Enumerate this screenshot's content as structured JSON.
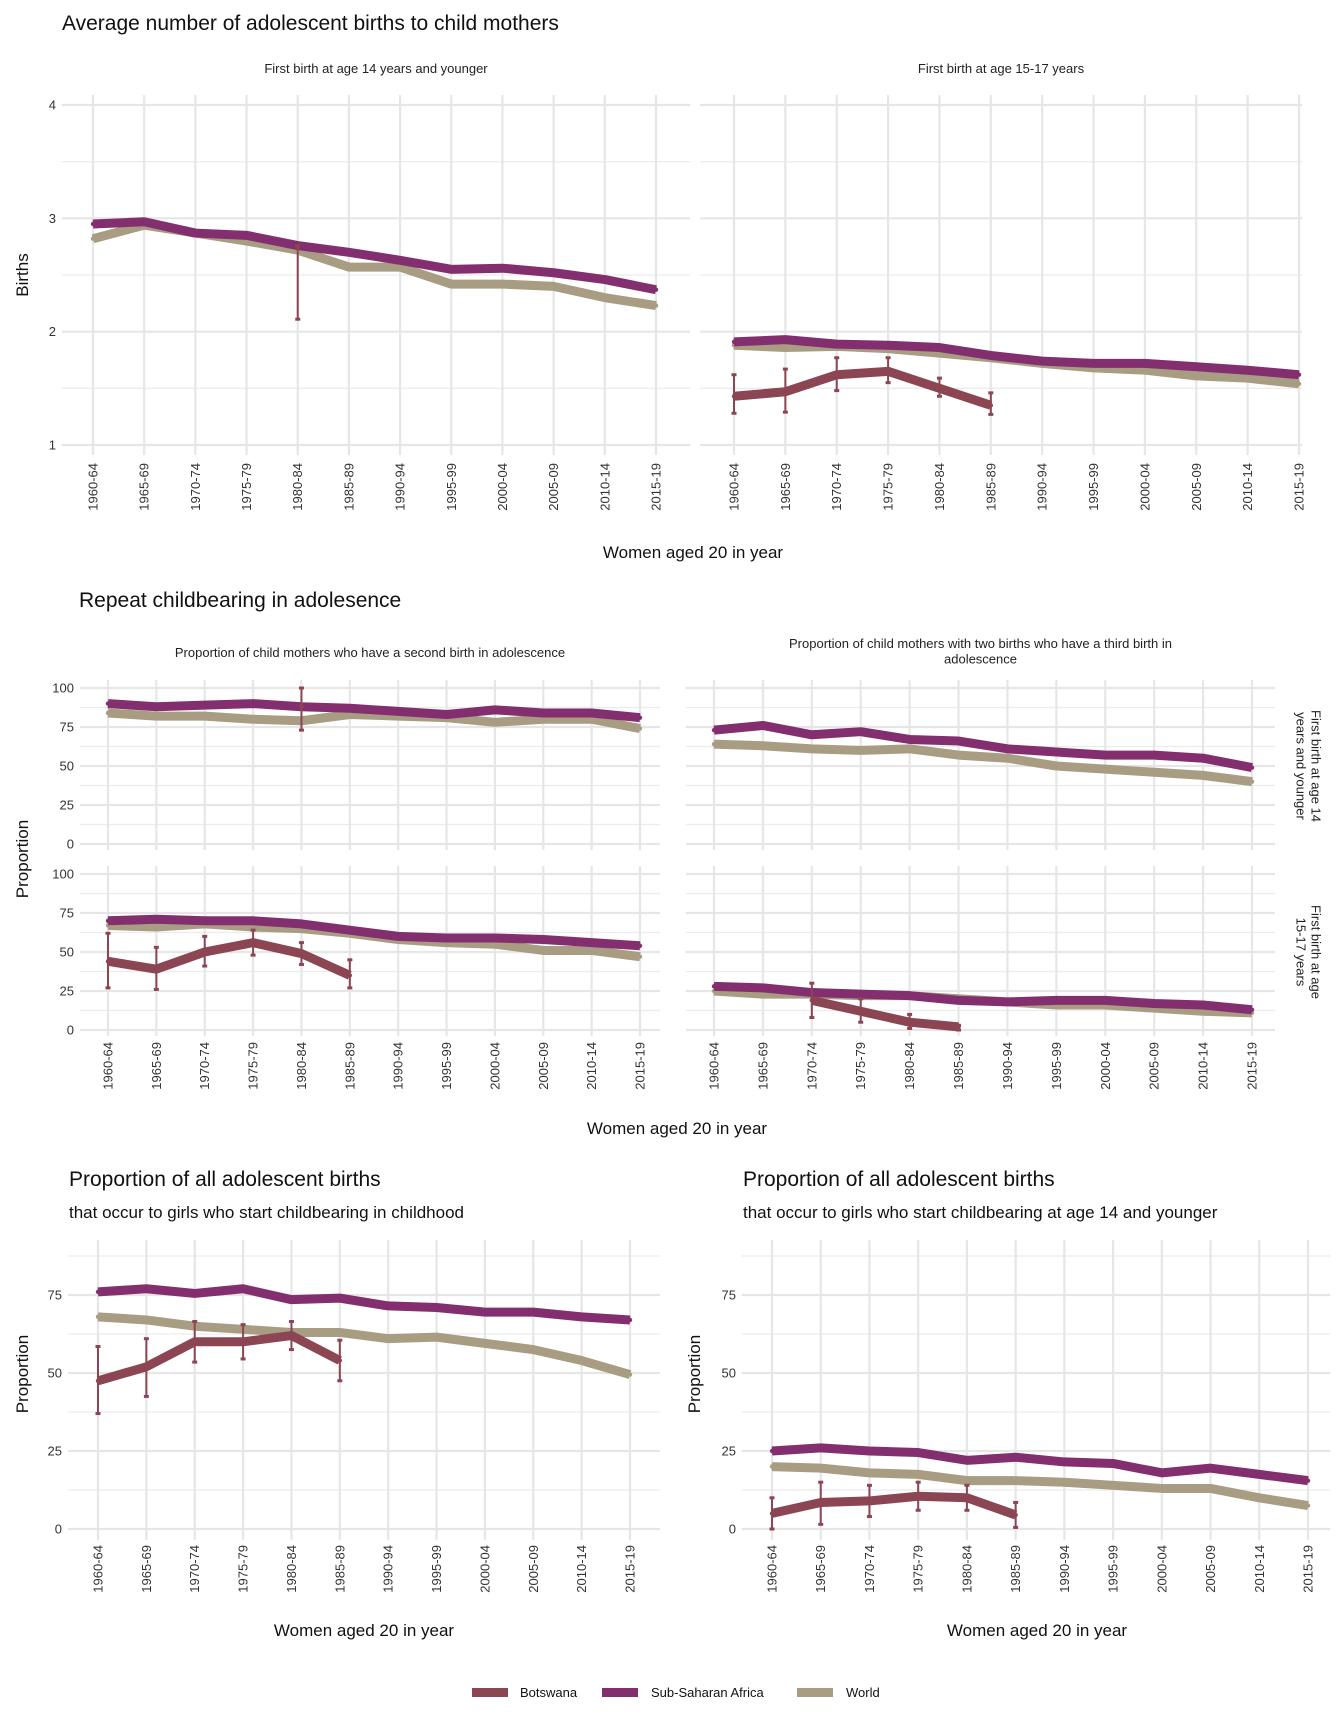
{
  "colors": {
    "Botswana": "#8b4553",
    "Sub-Saharan Africa": "#832f6f",
    "World": "#a89c82",
    "grid": "#e6e6e6"
  },
  "x_categories": [
    "1960-64",
    "1965-69",
    "1970-74",
    "1975-79",
    "1980-84",
    "1985-89",
    "1990-94",
    "1995-99",
    "2000-04",
    "2005-09",
    "2010-14",
    "2015-19"
  ],
  "legend": [
    {
      "label": "Botswana",
      "key": "Botswana"
    },
    {
      "label": "Sub-Saharan Africa",
      "key": "Sub-Saharan Africa"
    },
    {
      "label": "World",
      "key": "World"
    }
  ],
  "sections": {
    "births": {
      "title": "Average number of adolescent births to child mothers",
      "xlabel": "Women aged 20 in year",
      "ylabel": "Births"
    },
    "repeat": {
      "title": "Repeat childbearing in adolesence",
      "xlabel": "Women aged 20 in year",
      "ylabel": "Proportion",
      "row_strips": [
        "First birth at age 14 years and younger",
        "First birth at age 15-17 years"
      ]
    },
    "share_childhood": {
      "title": "Proportion of all adolescent births",
      "subtitle": "that occur to girls who start childbearing in childhood",
      "xlabel": "Women aged 20 in year",
      "ylabel": "Proportion"
    },
    "share_14": {
      "title": "Proportion of all adolescent births",
      "subtitle": "that occur to girls who start childbearing at age 14 and younger",
      "xlabel": "Women aged 20 in year",
      "ylabel": "Proportion"
    }
  },
  "chart_data": [
    {
      "id": "births_14",
      "type": "line",
      "title": "First birth at age 14 years and younger",
      "xlabel": "Women aged 20 in year",
      "ylabel": "Births",
      "ylim": [
        1,
        4
      ],
      "yticks": [
        1,
        2,
        3,
        4
      ],
      "grid": true,
      "series": [
        {
          "name": "Sub-Saharan Africa",
          "values": [
            2.95,
            2.97,
            2.87,
            2.85,
            2.76,
            2.7,
            2.63,
            2.55,
            2.56,
            2.52,
            2.46,
            2.37
          ]
        },
        {
          "name": "World",
          "values": [
            2.82,
            2.94,
            2.87,
            2.8,
            2.72,
            2.57,
            2.57,
            2.42,
            2.42,
            2.4,
            2.3,
            2.23
          ]
        },
        {
          "name": "Botswana",
          "values": [
            null,
            null,
            null,
            null,
            2.75,
            null,
            null,
            null,
            null,
            null,
            null,
            null
          ],
          "error_low": [
            null,
            null,
            null,
            null,
            2.11,
            null,
            null,
            null,
            null,
            null,
            null,
            null
          ],
          "error_high": [
            null,
            null,
            null,
            null,
            2.76,
            null,
            null,
            null,
            null,
            null,
            null,
            null
          ]
        }
      ]
    },
    {
      "id": "births_15_17",
      "type": "line",
      "title": "First birth at age 15-17 years",
      "xlabel": "Women aged 20 in year",
      "ylabel": "Births",
      "ylim": [
        1,
        4
      ],
      "yticks": [
        1,
        2,
        3,
        4
      ],
      "grid": true,
      "series": [
        {
          "name": "Sub-Saharan Africa",
          "values": [
            1.91,
            1.93,
            1.89,
            1.88,
            1.86,
            1.79,
            1.74,
            1.72,
            1.72,
            1.69,
            1.66,
            1.62
          ]
        },
        {
          "name": "World",
          "values": [
            1.88,
            1.86,
            1.87,
            1.85,
            1.81,
            1.77,
            1.72,
            1.68,
            1.66,
            1.61,
            1.59,
            1.54
          ]
        },
        {
          "name": "Botswana",
          "values": [
            1.43,
            1.47,
            1.62,
            1.65,
            1.5,
            1.35,
            null,
            null,
            null,
            null,
            null,
            null
          ],
          "error_low": [
            1.28,
            1.29,
            1.48,
            1.55,
            1.43,
            1.27,
            null,
            null,
            null,
            null,
            null,
            null
          ],
          "error_high": [
            1.62,
            1.67,
            1.77,
            1.77,
            1.59,
            1.46,
            null,
            null,
            null,
            null,
            null,
            null
          ]
        }
      ]
    },
    {
      "id": "second_birth_14",
      "type": "line",
      "title": "Proportion of child mothers who have a second birth in adolescence",
      "row_strip": "First birth at age 14 years and younger",
      "ylabel": "Proportion",
      "ylim": [
        0,
        100
      ],
      "yticks": [
        0,
        25,
        50,
        75,
        100
      ],
      "grid": true,
      "series": [
        {
          "name": "Sub-Saharan Africa",
          "values": [
            90,
            88,
            89,
            90,
            88,
            87,
            85,
            83,
            86,
            84,
            84,
            81
          ]
        },
        {
          "name": "World",
          "values": [
            84,
            82,
            82,
            80,
            79,
            83,
            82,
            81,
            78,
            80,
            80,
            74
          ]
        },
        {
          "name": "Botswana",
          "values": [
            null,
            null,
            null,
            null,
            88,
            null,
            null,
            null,
            null,
            null,
            null,
            null
          ],
          "error_low": [
            null,
            null,
            null,
            null,
            73,
            null,
            null,
            null,
            null,
            null,
            null,
            null
          ],
          "error_high": [
            null,
            null,
            null,
            null,
            100,
            null,
            null,
            null,
            null,
            null,
            null,
            null
          ]
        }
      ]
    },
    {
      "id": "third_birth_14",
      "type": "line",
      "title": "Proportion of child mothers with two births who have a third birth in adolescence",
      "row_strip": "First birth at age 14 years and younger",
      "ylabel": "Proportion",
      "ylim": [
        0,
        100
      ],
      "yticks": [
        0,
        25,
        50,
        75,
        100
      ],
      "grid": true,
      "series": [
        {
          "name": "Sub-Saharan Africa",
          "values": [
            73,
            76,
            70,
            72,
            67,
            66,
            61,
            59,
            57,
            57,
            55,
            49
          ]
        },
        {
          "name": "World",
          "values": [
            64,
            63,
            61,
            60,
            61,
            57,
            55,
            50,
            48,
            46,
            44,
            40
          ]
        }
      ]
    },
    {
      "id": "second_birth_15_17",
      "type": "line",
      "title": "Proportion of child mothers who have a second birth in adolescence",
      "row_strip": "First birth at age 15-17 years",
      "ylabel": "Proportion",
      "ylim": [
        0,
        100
      ],
      "yticks": [
        0,
        25,
        50,
        75,
        100
      ],
      "grid": true,
      "series": [
        {
          "name": "Sub-Saharan Africa",
          "values": [
            70,
            71,
            70,
            70,
            68,
            64,
            60,
            59,
            59,
            58,
            56,
            54
          ]
        },
        {
          "name": "World",
          "values": [
            67,
            66,
            68,
            66,
            65,
            62,
            58,
            56,
            55,
            51,
            51,
            47
          ]
        },
        {
          "name": "Botswana",
          "values": [
            44,
            39,
            50,
            56,
            49,
            35,
            null,
            null,
            null,
            null,
            null,
            null
          ],
          "error_low": [
            27,
            26,
            41,
            48,
            42,
            27,
            null,
            null,
            null,
            null,
            null,
            null
          ],
          "error_high": [
            62,
            53,
            60,
            64,
            56,
            45,
            null,
            null,
            null,
            null,
            null,
            null
          ]
        }
      ]
    },
    {
      "id": "third_birth_15_17",
      "type": "line",
      "title": "Proportion of child mothers with two births who have a third birth in adolescence",
      "row_strip": "First birth at age 15-17 years",
      "ylabel": "Proportion",
      "ylim": [
        0,
        100
      ],
      "yticks": [
        0,
        25,
        50,
        75,
        100
      ],
      "grid": true,
      "series": [
        {
          "name": "Sub-Saharan Africa",
          "values": [
            28,
            27,
            24,
            23,
            22,
            19,
            18,
            19,
            19,
            17,
            16,
            13
          ]
        },
        {
          "name": "World",
          "values": [
            25,
            23,
            23,
            22,
            22,
            20,
            18,
            16,
            16,
            14,
            12,
            11
          ]
        },
        {
          "name": "Botswana",
          "values": [
            null,
            null,
            19,
            12,
            5,
            2,
            null,
            null,
            null,
            null,
            null,
            null
          ],
          "error_low": [
            null,
            null,
            8,
            5,
            1,
            0,
            null,
            null,
            null,
            null,
            null,
            null
          ],
          "error_high": [
            null,
            null,
            30,
            20,
            10,
            3,
            null,
            null,
            null,
            null,
            null,
            null
          ]
        }
      ]
    },
    {
      "id": "share_childhood",
      "type": "line",
      "title": "Proportion of all adolescent births",
      "subtitle": "that occur to girls who start childbearing in childhood",
      "xlabel": "Women aged 20 in year",
      "ylabel": "Proportion",
      "ylim": [
        0,
        90
      ],
      "yticks": [
        0,
        25,
        50,
        75
      ],
      "grid": true,
      "series": [
        {
          "name": "Sub-Saharan Africa",
          "values": [
            76,
            77,
            75.5,
            77,
            73.5,
            74,
            71.5,
            71,
            69.5,
            69.5,
            68,
            67
          ]
        },
        {
          "name": "World",
          "values": [
            68,
            67,
            65,
            64,
            63,
            63,
            61,
            61.5,
            59.5,
            57.5,
            54,
            49.5
          ]
        },
        {
          "name": "Botswana",
          "values": [
            47.5,
            52,
            60,
            60,
            62,
            54,
            null,
            null,
            null,
            null,
            null,
            null
          ],
          "error_low": [
            37,
            42.5,
            53.5,
            54.5,
            57.5,
            47.5,
            null,
            null,
            null,
            null,
            null,
            null
          ],
          "error_high": [
            58.5,
            61,
            66.5,
            65.5,
            66.5,
            60.5,
            null,
            null,
            null,
            null,
            null,
            null
          ]
        }
      ]
    },
    {
      "id": "share_14",
      "type": "line",
      "title": "Proportion of all adolescent births",
      "subtitle": "that occur to girls who start childbearing at age 14 and younger",
      "xlabel": "Women aged 20 in year",
      "ylabel": "Proportion",
      "ylim": [
        0,
        90
      ],
      "yticks": [
        0,
        25,
        50,
        75
      ],
      "grid": true,
      "series": [
        {
          "name": "Sub-Saharan Africa",
          "values": [
            25,
            26,
            25,
            24.5,
            22,
            23,
            21.5,
            21,
            18,
            19.5,
            17.5,
            15.5
          ]
        },
        {
          "name": "World",
          "values": [
            20,
            19.5,
            18,
            17.5,
            15.5,
            15.5,
            15,
            14,
            13,
            13,
            10,
            7.5
          ]
        },
        {
          "name": "Botswana",
          "values": [
            5,
            8.5,
            9,
            10.5,
            10,
            4.5,
            null,
            null,
            null,
            null,
            null,
            null
          ],
          "error_low": [
            0,
            1.5,
            4,
            6,
            6,
            0.5,
            null,
            null,
            null,
            null,
            null,
            null
          ],
          "error_high": [
            10,
            15,
            14,
            15,
            14,
            8.5,
            null,
            null,
            null,
            null,
            null,
            null
          ]
        }
      ]
    }
  ]
}
